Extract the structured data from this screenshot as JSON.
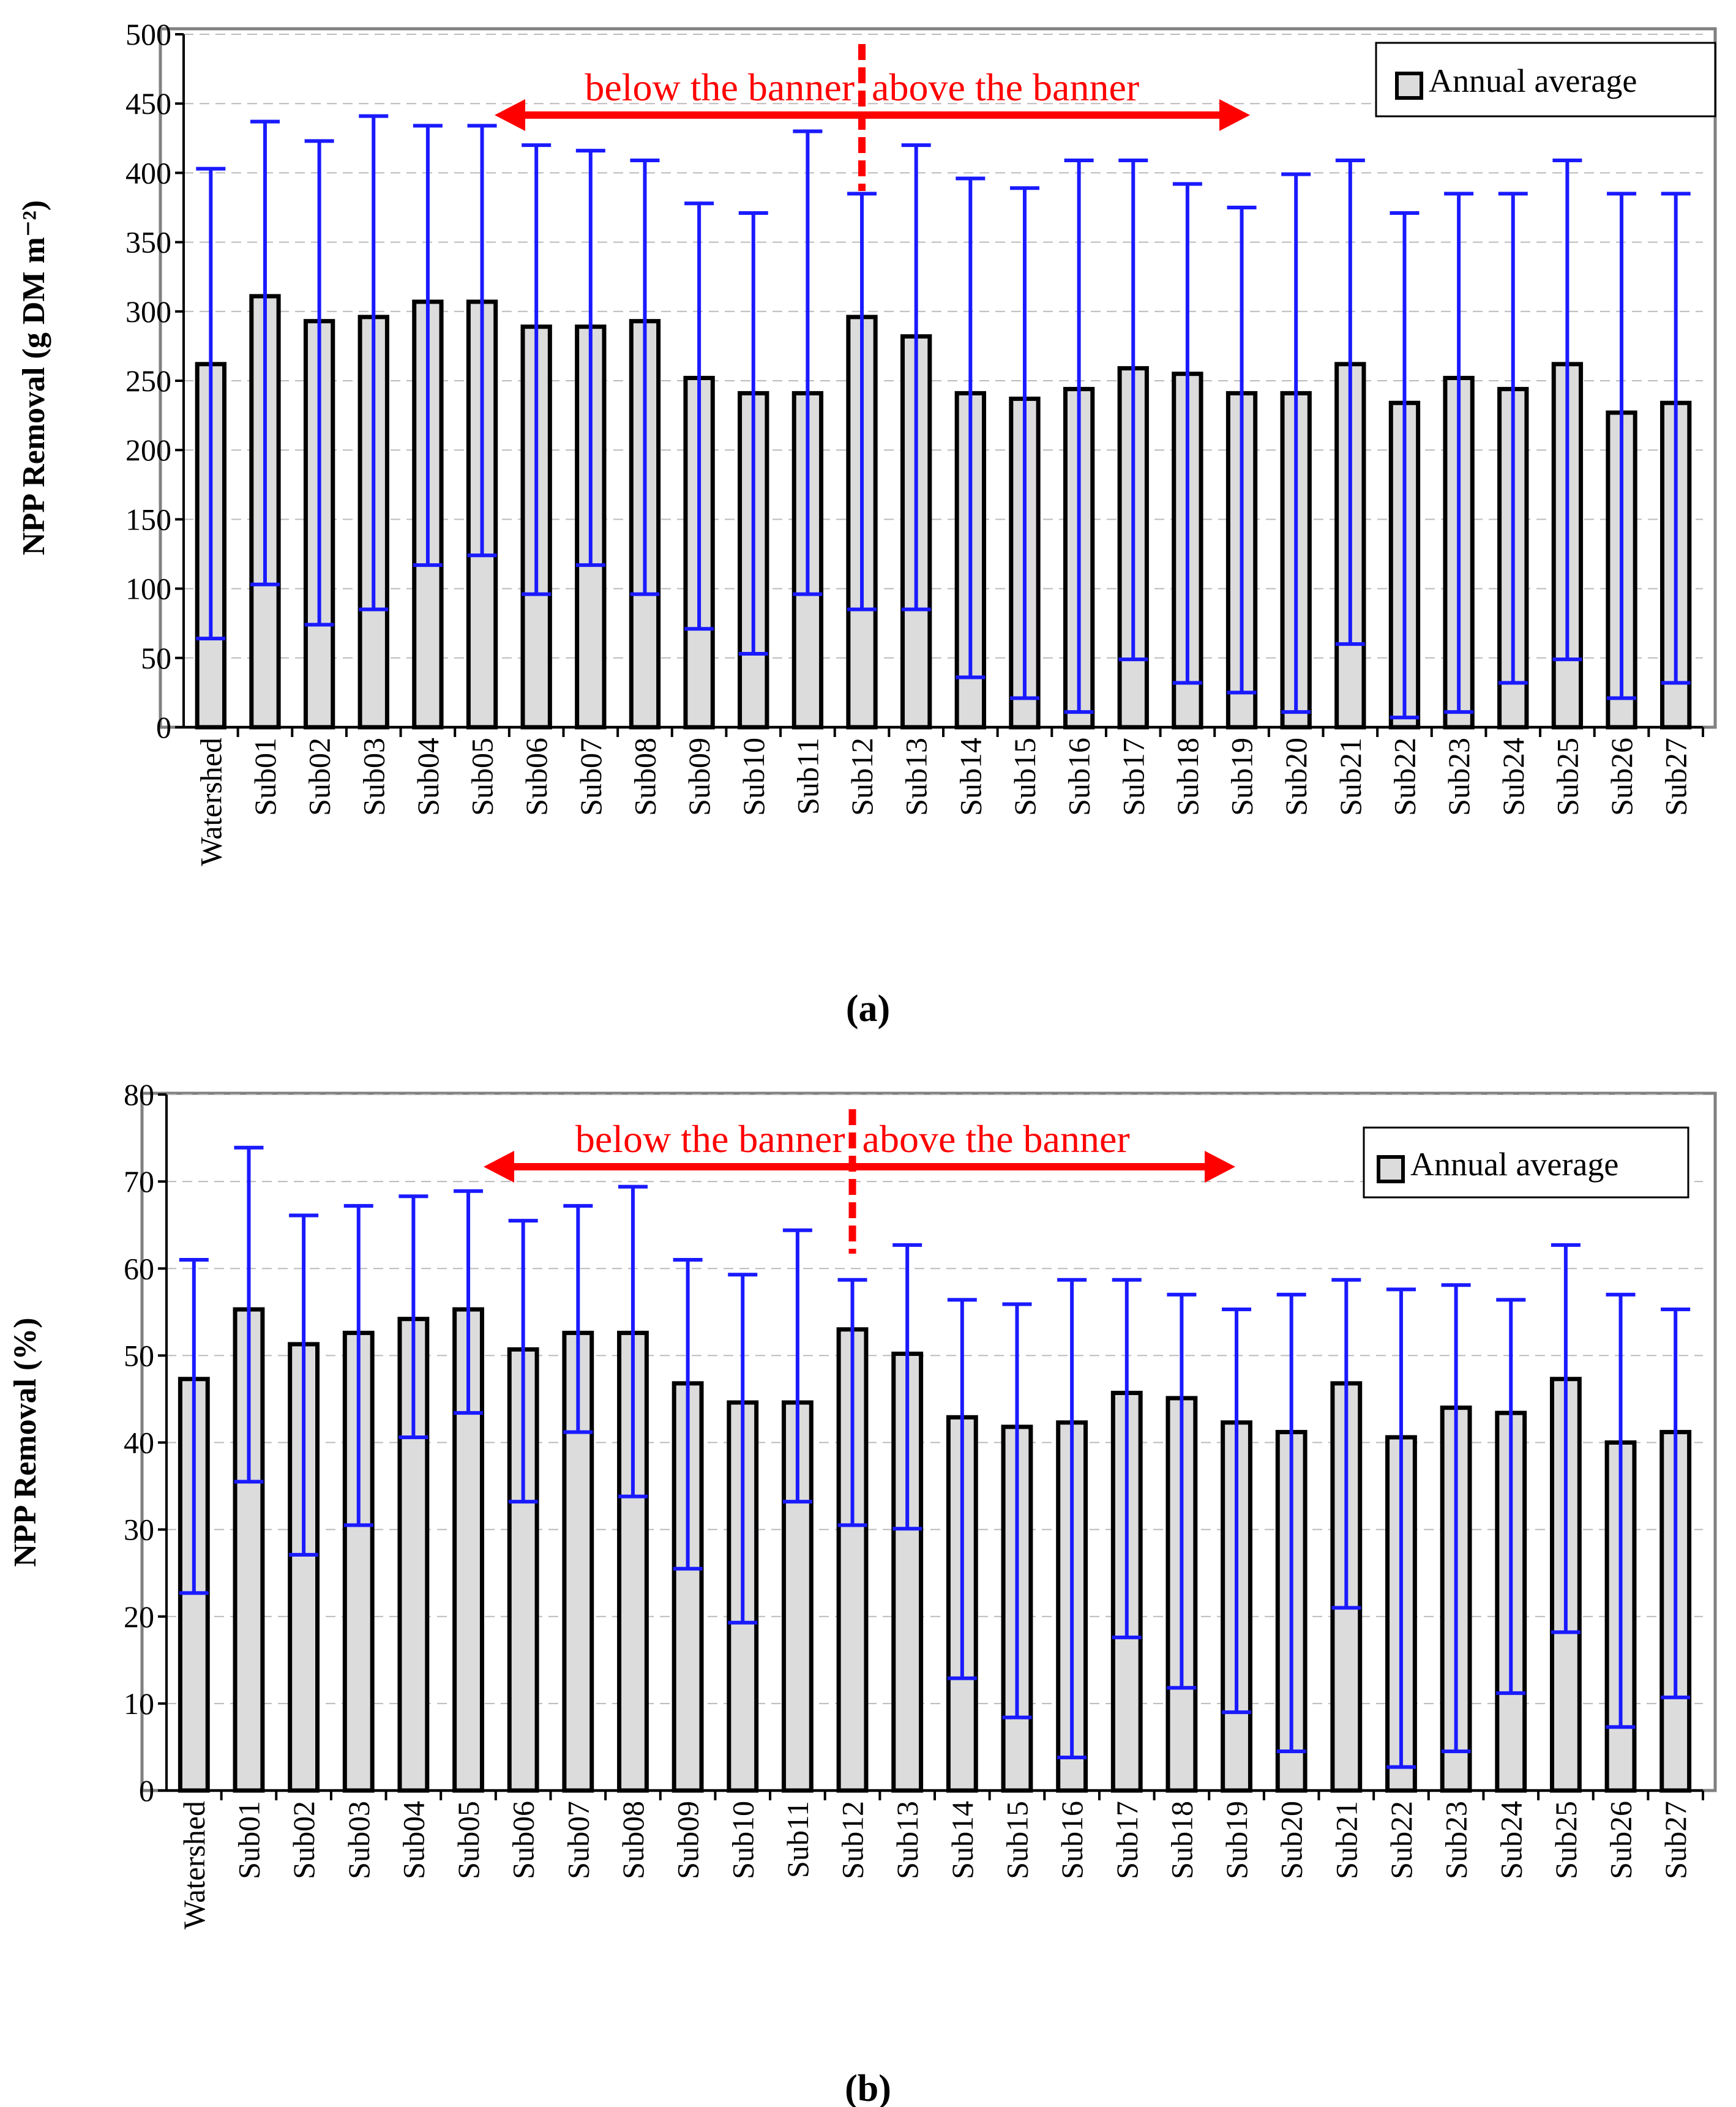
{
  "chart_data": [
    {
      "type": "bar",
      "panel_label": "(a)",
      "ylabel": "NPP Removal (g DM m⁻²)",
      "ylim": [
        0,
        500
      ],
      "ytick_step": 50,
      "ytick_labels": [
        "0",
        "50",
        "100",
        "150",
        "200",
        "250",
        "300",
        "350",
        "400",
        "450",
        "500"
      ],
      "legend": "Annual average",
      "legend_position": "top-right",
      "grid": "horizontal dashed",
      "annotation_left": "below the banner",
      "annotation_right": "above the banner",
      "divider_category": "Sub12",
      "categories": [
        "Watershed",
        "Sub01",
        "Sub02",
        "Sub03",
        "Sub04",
        "Sub05",
        "Sub06",
        "Sub07",
        "Sub08",
        "Sub09",
        "Sub10",
        "Sub11",
        "Sub12",
        "Sub13",
        "Sub14",
        "Sub15",
        "Sub16",
        "Sub17",
        "Sub18",
        "Sub19",
        "Sub20",
        "Sub21",
        "Sub22",
        "Sub23",
        "Sub24",
        "Sub25",
        "Sub26",
        "Sub27"
      ],
      "series": [
        {
          "name": "Annual average",
          "values": [
            262,
            311,
            293,
            296,
            307,
            307,
            289,
            289,
            293,
            252,
            241,
            241,
            296,
            282,
            241,
            237,
            244,
            259,
            255,
            241,
            241,
            262,
            234,
            252,
            244,
            262,
            227,
            234
          ],
          "error_low": [
            64,
            103,
            74,
            85,
            117,
            124,
            96,
            117,
            96,
            71,
            53,
            96,
            85,
            85,
            36,
            21,
            11,
            49,
            32,
            25,
            11,
            60,
            7,
            11,
            32,
            49,
            21,
            32
          ],
          "error_high": [
            403,
            437,
            423,
            441,
            434,
            434,
            420,
            416,
            409,
            378,
            371,
            430,
            385,
            420,
            396,
            389,
            409,
            409,
            392,
            375,
            399,
            409,
            371,
            385,
            385,
            409,
            385,
            385
          ]
        }
      ]
    },
    {
      "type": "bar",
      "panel_label": "(b)",
      "ylabel": "NPP Removal (%)",
      "ylim": [
        0,
        80
      ],
      "ytick_step": 10,
      "ytick_labels": [
        "0",
        "10",
        "20",
        "30",
        "40",
        "50",
        "60",
        "70",
        "80"
      ],
      "legend": "Annual average",
      "legend_position": "top-right",
      "grid": "horizontal dashed",
      "annotation_left": "below the banner",
      "annotation_right": "above the banner",
      "divider_category": "Sub12",
      "categories": [
        "Watershed",
        "Sub01",
        "Sub02",
        "Sub03",
        "Sub04",
        "Sub05",
        "Sub06",
        "Sub07",
        "Sub08",
        "Sub09",
        "Sub10",
        "Sub11",
        "Sub12",
        "Sub13",
        "Sub14",
        "Sub15",
        "Sub16",
        "Sub17",
        "Sub18",
        "Sub19",
        "Sub20",
        "Sub21",
        "Sub22",
        "Sub23",
        "Sub24",
        "Sub25",
        "Sub26",
        "Sub27"
      ],
      "series": [
        {
          "name": "Annual average",
          "values": [
            47.3,
            55.3,
            51.3,
            52.6,
            54.2,
            55.3,
            50.7,
            52.6,
            52.6,
            46.8,
            44.6,
            44.6,
            53.0,
            50.2,
            42.9,
            41.8,
            42.3,
            45.7,
            45.1,
            42.3,
            41.2,
            46.8,
            40.6,
            44.0,
            43.4,
            47.3,
            40.0,
            41.2
          ],
          "error_low": [
            22.7,
            35.5,
            27.1,
            30.5,
            40.6,
            43.4,
            33.2,
            41.2,
            33.8,
            25.5,
            19.3,
            33.2,
            30.5,
            30.1,
            12.9,
            8.4,
            3.8,
            17.6,
            11.8,
            9.0,
            4.5,
            21.0,
            2.7,
            4.5,
            11.2,
            18.2,
            7.3,
            10.7
          ],
          "error_high": [
            61.0,
            73.9,
            66.1,
            67.2,
            68.3,
            68.9,
            65.5,
            67.2,
            69.4,
            61.0,
            59.3,
            64.4,
            58.7,
            62.7,
            56.4,
            55.9,
            58.7,
            58.7,
            57.0,
            55.3,
            57.0,
            58.7,
            57.6,
            58.1,
            56.4,
            62.7,
            57.0,
            55.3
          ]
        }
      ]
    }
  ],
  "colors": {
    "bar_fill": "#dcdcdc",
    "bar_stroke": "#000000",
    "error_bar": "#1a1aff",
    "banner": "#ff0000",
    "grid": "#bbbbbb",
    "frame": "#808080"
  }
}
